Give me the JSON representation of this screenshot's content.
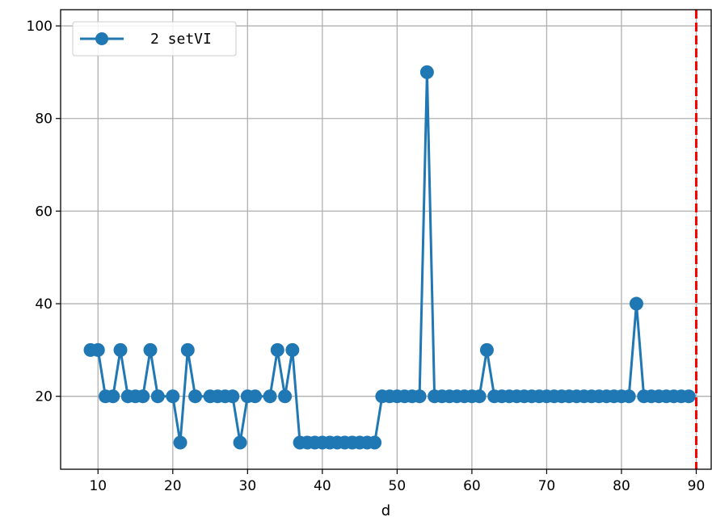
{
  "chart_data": {
    "type": "line",
    "xlabel": "d",
    "ylabel": "",
    "xlim": [
      5,
      92
    ],
    "ylim": [
      4.25,
      103.5
    ],
    "xticks": [
      10,
      20,
      30,
      40,
      50,
      60,
      70,
      80,
      90
    ],
    "yticks": [
      20,
      40,
      60,
      80,
      100
    ],
    "grid": true,
    "legend_position": "top-left",
    "series": [
      {
        "name": "2 setVI",
        "color": "#1f77b4",
        "marker": "circle",
        "x": [
          9,
          10,
          11,
          12,
          13,
          14,
          15,
          16,
          17,
          18,
          20,
          21,
          22,
          23,
          25,
          26,
          27,
          28,
          29,
          30,
          31,
          33,
          34,
          35,
          36,
          37,
          38,
          39,
          40,
          41,
          42,
          43,
          44,
          45,
          46,
          47,
          48,
          49,
          50,
          51,
          52,
          53,
          54,
          55,
          56,
          57,
          58,
          59,
          60,
          61,
          62,
          63,
          64,
          65,
          66,
          67,
          68,
          69,
          70,
          71,
          72,
          73,
          74,
          75,
          76,
          77,
          78,
          79,
          80,
          81,
          82,
          83,
          84,
          85,
          86,
          87,
          88,
          89
        ],
        "y": [
          30,
          30,
          20,
          20,
          30,
          20,
          20,
          20,
          30,
          20,
          20,
          10,
          30,
          20,
          20,
          20,
          20,
          20,
          10,
          20,
          20,
          20,
          30,
          20,
          30,
          10,
          10,
          10,
          10,
          10,
          10,
          10,
          10,
          10,
          10,
          10,
          20,
          20,
          20,
          20,
          20,
          20,
          90,
          20,
          20,
          20,
          20,
          20,
          20,
          20,
          30,
          20,
          20,
          20,
          20,
          20,
          20,
          20,
          20,
          20,
          20,
          20,
          20,
          20,
          20,
          20,
          20,
          20,
          20,
          20,
          40,
          20,
          20,
          20,
          20,
          20,
          20,
          20
        ]
      }
    ],
    "reference_line": {
      "axis": "x",
      "value": 90,
      "color": "#ff0000",
      "style": "dashed"
    }
  }
}
